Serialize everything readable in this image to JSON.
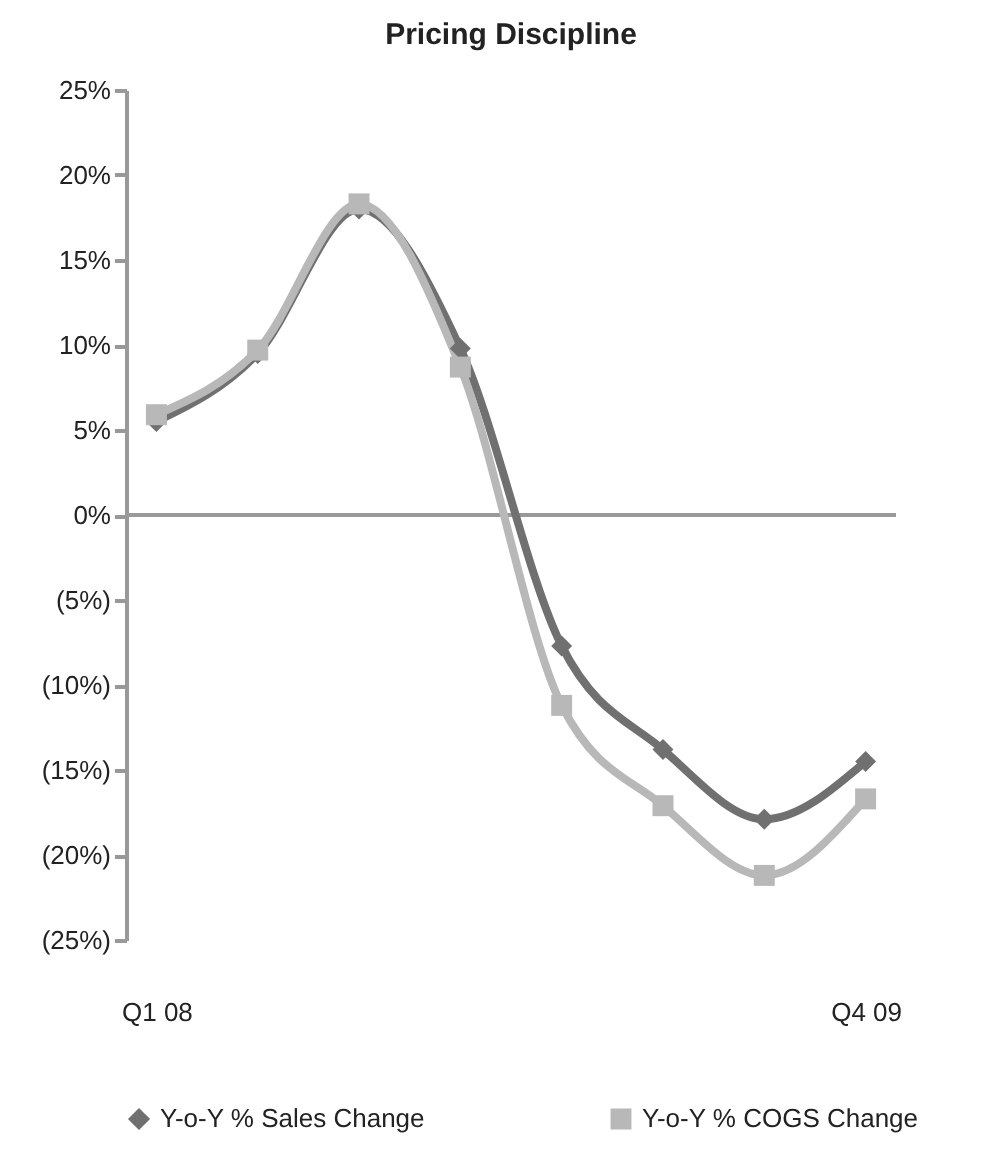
{
  "chart_data": {
    "type": "line",
    "title": "Pricing Discipline",
    "categories": [
      "Q1 08",
      null,
      null,
      null,
      null,
      null,
      null,
      "Q4 09"
    ],
    "series": [
      {
        "name": "Y-o-Y % Sales Change",
        "color": "#707070",
        "marker": "diamond",
        "values": [
          5.5,
          9.5,
          18,
          9.8,
          -7.7,
          -13.8,
          -17.9,
          -14.5
        ]
      },
      {
        "name": "Y-o-Y % COGS Change",
        "color": "#b8b8b8",
        "marker": "square",
        "values": [
          5.9,
          9.7,
          18.3,
          8.7,
          -11.2,
          -17.1,
          -21.2,
          -16.7
        ]
      }
    ],
    "ylim": [
      -25,
      25
    ],
    "yticks": [
      {
        "value": -25,
        "label": "(25%)"
      },
      {
        "value": -20,
        "label": "(20%)"
      },
      {
        "value": -15,
        "label": "(15%)"
      },
      {
        "value": -10,
        "label": "(10%)"
      },
      {
        "value": -5,
        "label": "(5%)"
      },
      {
        "value": 0,
        "label": "0%"
      },
      {
        "value": 5,
        "label": "5%"
      },
      {
        "value": 10,
        "label": "10%"
      },
      {
        "value": 15,
        "label": "15%"
      },
      {
        "value": 20,
        "label": "20%"
      },
      {
        "value": 25,
        "label": "25%"
      }
    ],
    "ref_lines": [
      {
        "axis": "y",
        "value": 0,
        "label": null,
        "color": "#999999"
      }
    ],
    "grid": false,
    "legend": "bottom",
    "line_style": "solid"
  }
}
